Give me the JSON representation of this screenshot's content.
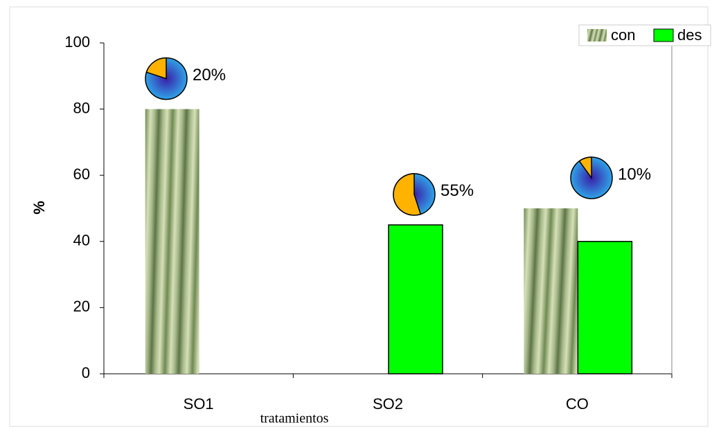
{
  "chart_data": {
    "type": "bar",
    "y_label": "%",
    "x_label": "tratamientos",
    "categories": [
      "SO1",
      "SO2",
      "CO"
    ],
    "series": [
      {
        "name": "con",
        "color": "#9fb88a",
        "values": [
          80,
          0,
          50
        ]
      },
      {
        "name": "des",
        "color": "#00ff00",
        "values": [
          0,
          45,
          40
        ]
      }
    ],
    "pies": [
      {
        "value": 20,
        "label": "20%"
      },
      {
        "value": 55,
        "label": "55%"
      },
      {
        "value": 10,
        "label": "10%"
      }
    ],
    "pie_colors": [
      "#ffb300",
      "#2a7fd8"
    ],
    "ylim": [
      0,
      100
    ],
    "yticks": [
      0,
      20,
      40,
      60,
      80,
      100
    ],
    "grid": false,
    "legend": "top-right"
  }
}
